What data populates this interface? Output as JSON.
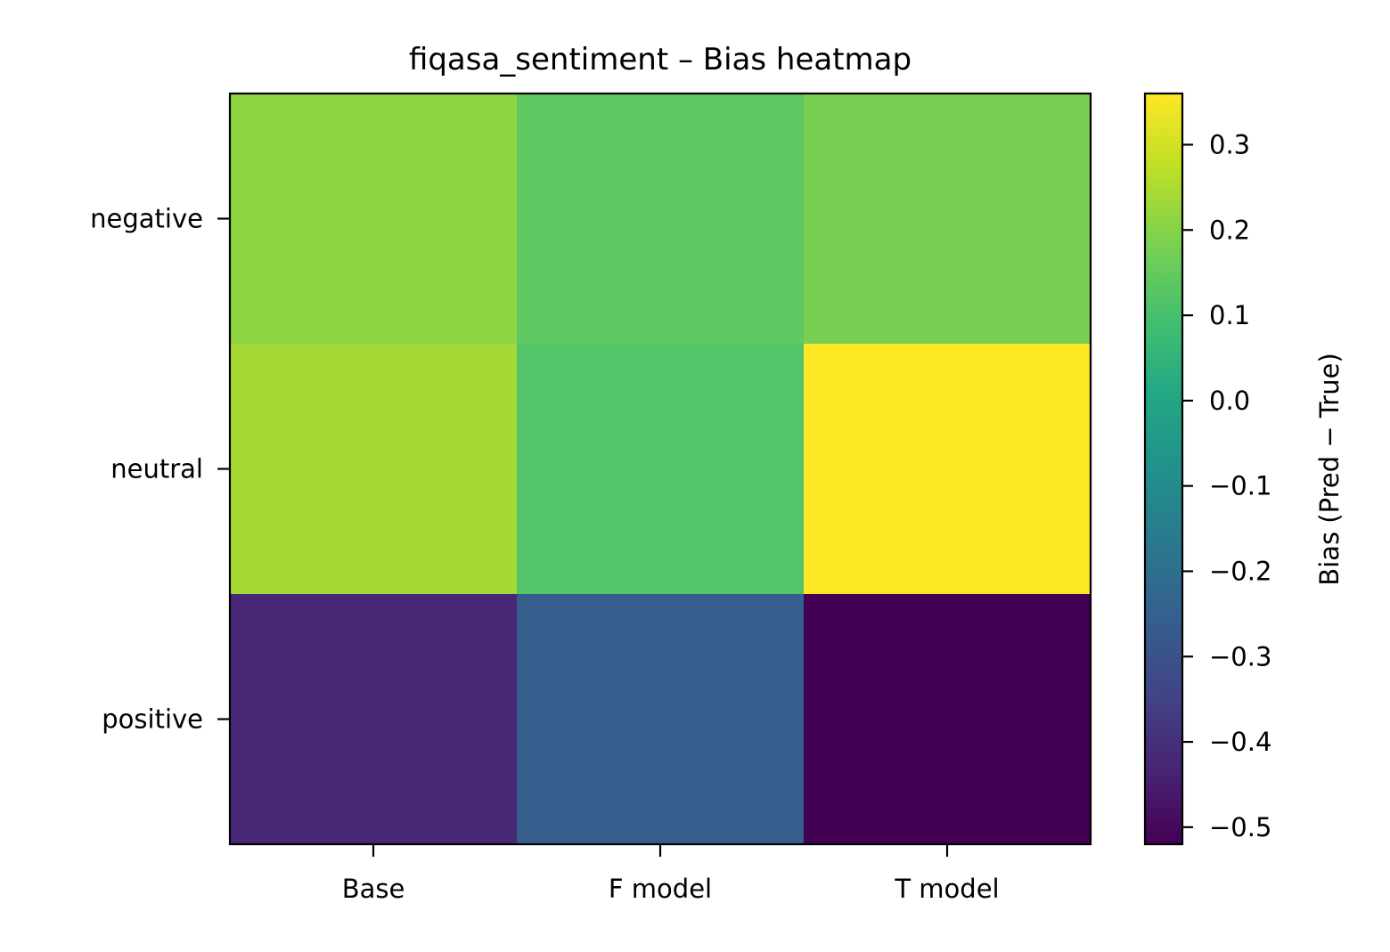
{
  "chart_data": {
    "type": "heatmap",
    "title": "fiqasa_sentiment – Bias heatmap",
    "columns": [
      "Base",
      "F model",
      "T model"
    ],
    "rows": [
      "negative",
      "neutral",
      "positive"
    ],
    "values": [
      [
        0.21,
        0.14,
        0.18
      ],
      [
        0.24,
        0.12,
        0.36
      ],
      [
        -0.42,
        -0.26,
        -0.52
      ]
    ],
    "colorbar": {
      "label": "Bias (Pred − True)",
      "range": [
        -0.52,
        0.36
      ],
      "ticks": [
        0.3,
        0.2,
        0.1,
        0.0,
        -0.1,
        -0.2,
        -0.3,
        -0.4,
        -0.5
      ],
      "tick_labels": [
        "0.3",
        "0.2",
        "0.1",
        "0.0",
        "−0.1",
        "−0.2",
        "−0.3",
        "−0.4",
        "−0.5"
      ]
    },
    "colormap": "viridis"
  }
}
